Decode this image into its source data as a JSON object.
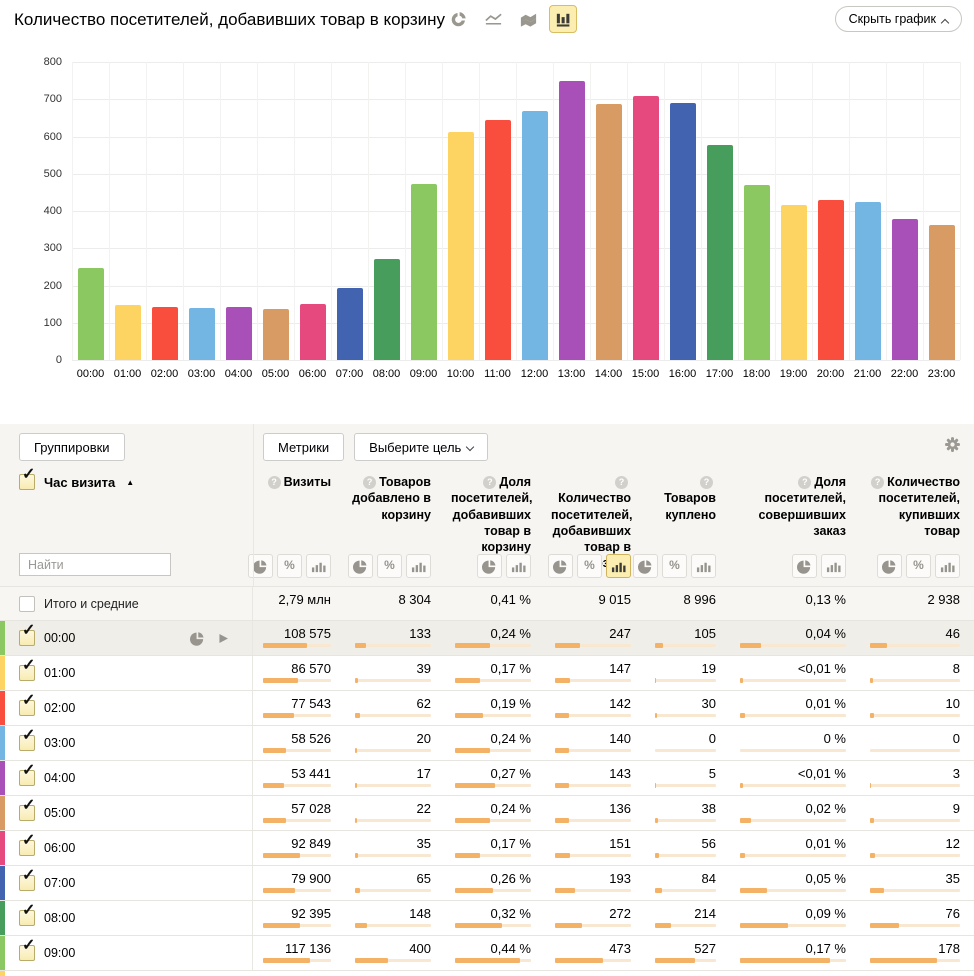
{
  "header": {
    "title": "Количество посетителей, добавивших товар в корзину",
    "hide_chart_label": "Скрыть график",
    "chart_type_switcher": [
      {
        "icon": "donut-chart",
        "selected": false
      },
      {
        "icon": "line-chart",
        "selected": false
      },
      {
        "icon": "stacked-area-chart",
        "selected": false
      },
      {
        "icon": "column-chart",
        "selected": true
      }
    ]
  },
  "chart_data": {
    "type": "bar",
    "title": "Количество посетителей, добавивших товар в корзину",
    "categories": [
      "00:00",
      "01:00",
      "02:00",
      "03:00",
      "04:00",
      "05:00",
      "06:00",
      "07:00",
      "08:00",
      "09:00",
      "10:00",
      "11:00",
      "12:00",
      "13:00",
      "14:00",
      "15:00",
      "16:00",
      "17:00",
      "18:00",
      "19:00",
      "20:00",
      "21:00",
      "22:00",
      "23:00"
    ],
    "values": [
      247,
      147,
      142,
      140,
      143,
      136,
      151,
      193,
      272,
      473,
      611,
      645,
      668,
      750,
      687,
      710,
      690,
      578,
      470,
      415,
      430,
      425,
      378,
      363
    ],
    "palette": [
      "#8cc862",
      "#fdd462",
      "#f94d3d",
      "#73b6e3",
      "#a94fb8",
      "#d89b64",
      "#e5497d",
      "#4163b0",
      "#479e5c"
    ],
    "ylim": [
      0,
      800
    ],
    "yticks": [
      0,
      100,
      200,
      300,
      400,
      500,
      600,
      700,
      800
    ],
    "grid": true,
    "xlabel": "",
    "ylabel": ""
  },
  "controls": {
    "groupings_label": "Группировки",
    "metrics_label": "Метрики",
    "goal_select_label": "Выберите цель"
  },
  "table": {
    "dimension": {
      "label": "Час визита",
      "sort": "asc",
      "checked": true,
      "search_placeholder": "Найти"
    },
    "columns": [
      {
        "label": "Визиты",
        "views": [
          "pie",
          "percent",
          "columns"
        ],
        "active_view": null
      },
      {
        "label": "Товаров добавлено в корзину",
        "views": [
          "pie",
          "percent",
          "columns"
        ],
        "active_view": null
      },
      {
        "label": "Доля посетителей, добавивших товар в корзину",
        "views": [
          "pie",
          "columns"
        ],
        "active_view": null
      },
      {
        "label": "Количество посетителей, добавивших товар в корзину",
        "views": [
          "pie",
          "percent",
          "columns"
        ],
        "active_view": "columns"
      },
      {
        "label": "Товаров куплено",
        "views": [
          "pie",
          "percent",
          "columns"
        ],
        "active_view": null
      },
      {
        "label": "Доля посетителей, совершивших заказ",
        "views": [
          "pie",
          "columns"
        ],
        "active_view": null
      },
      {
        "label": "Количество посетителей, купивших товар",
        "views": [
          "pie",
          "percent",
          "columns"
        ],
        "active_view": null
      }
    ],
    "totals": {
      "label": "Итого и средние",
      "checked": false,
      "values": [
        "2,79 млн",
        "8 304",
        "0,41 %",
        "9 015",
        "8 996",
        "0,13 %",
        "2 938"
      ]
    },
    "rows": [
      {
        "label": "00:00",
        "checked": true,
        "hovered": true,
        "values": [
          "108 575",
          "133",
          "0,24 %",
          "247",
          "105",
          "0,04 %",
          "46"
        ],
        "bar_fractions": [
          0.64,
          0.15,
          0.46,
          0.33,
          0.13,
          0.2,
          0.19
        ]
      },
      {
        "label": "01:00",
        "checked": true,
        "hovered": false,
        "values": [
          "86 570",
          "39",
          "0,17 %",
          "147",
          "19",
          "<0,01 %",
          "8"
        ],
        "bar_fractions": [
          0.51,
          0.04,
          0.33,
          0.2,
          0.02,
          0.03,
          0.03
        ]
      },
      {
        "label": "02:00",
        "checked": true,
        "hovered": false,
        "values": [
          "77 543",
          "62",
          "0,19 %",
          "142",
          "30",
          "0,01 %",
          "10"
        ],
        "bar_fractions": [
          0.46,
          0.07,
          0.37,
          0.19,
          0.04,
          0.05,
          0.04
        ]
      },
      {
        "label": "03:00",
        "checked": true,
        "hovered": false,
        "values": [
          "58 526",
          "20",
          "0,24 %",
          "140",
          "0",
          "0 %",
          "0"
        ],
        "bar_fractions": [
          0.34,
          0.02,
          0.46,
          0.19,
          0,
          0,
          0
        ]
      },
      {
        "label": "04:00",
        "checked": true,
        "hovered": false,
        "values": [
          "53 441",
          "17",
          "0,27 %",
          "143",
          "5",
          "<0,01 %",
          "3"
        ],
        "bar_fractions": [
          0.31,
          0.02,
          0.52,
          0.19,
          0.01,
          0.03,
          0.01
        ]
      },
      {
        "label": "05:00",
        "checked": true,
        "hovered": false,
        "values": [
          "57 028",
          "22",
          "0,24 %",
          "136",
          "38",
          "0,02 %",
          "9"
        ],
        "bar_fractions": [
          0.34,
          0.02,
          0.46,
          0.18,
          0.05,
          0.1,
          0.04
        ]
      },
      {
        "label": "06:00",
        "checked": true,
        "hovered": false,
        "values": [
          "92 849",
          "35",
          "0,17 %",
          "151",
          "56",
          "0,01 %",
          "12"
        ],
        "bar_fractions": [
          0.55,
          0.04,
          0.33,
          0.2,
          0.07,
          0.05,
          0.05
        ]
      },
      {
        "label": "07:00",
        "checked": true,
        "hovered": false,
        "values": [
          "79 900",
          "65",
          "0,26 %",
          "193",
          "84",
          "0,05 %",
          "35"
        ],
        "bar_fractions": [
          0.47,
          0.07,
          0.5,
          0.26,
          0.11,
          0.25,
          0.15
        ]
      },
      {
        "label": "08:00",
        "checked": true,
        "hovered": false,
        "values": [
          "92 395",
          "148",
          "0,32 %",
          "272",
          "214",
          "0,09 %",
          "76"
        ],
        "bar_fractions": [
          0.54,
          0.16,
          0.62,
          0.36,
          0.27,
          0.45,
          0.32
        ]
      },
      {
        "label": "09:00",
        "checked": true,
        "hovered": false,
        "values": [
          "117 136",
          "400",
          "0,44 %",
          "473",
          "527",
          "0,17 %",
          "178"
        ],
        "bar_fractions": [
          0.69,
          0.44,
          0.85,
          0.63,
          0.66,
          0.85,
          0.74
        ]
      }
    ]
  }
}
